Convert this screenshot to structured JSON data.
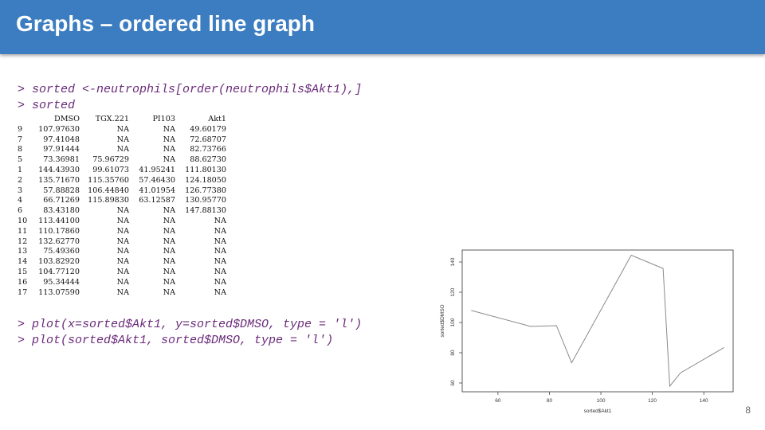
{
  "header": {
    "title": "Graphs – ordered line graph"
  },
  "commands": [
    "> sorted <-neutrophils[order(neutrophils$Akt1),]",
    "> sorted"
  ],
  "table": {
    "columns": [
      "DMSO",
      "TGX.221",
      "PI103",
      "Akt1"
    ],
    "rows": [
      [
        "9",
        "107.97630",
        "NA",
        "NA",
        "49.60179"
      ],
      [
        "7",
        "97.41048",
        "NA",
        "NA",
        "72.68707"
      ],
      [
        "8",
        "97.91444",
        "NA",
        "NA",
        "82.73766"
      ],
      [
        "5",
        "73.36981",
        "75.96729",
        "NA",
        "88.62730"
      ],
      [
        "1",
        "144.43930",
        "99.61073",
        "41.95241",
        "111.80130"
      ],
      [
        "2",
        "135.71670",
        "115.35760",
        "57.46430",
        "124.18050"
      ],
      [
        "3",
        "57.88828",
        "106.44840",
        "41.01954",
        "126.77380"
      ],
      [
        "4",
        "66.71269",
        "115.89830",
        "63.12587",
        "130.95770"
      ],
      [
        "6",
        "83.43180",
        "NA",
        "NA",
        "147.88130"
      ],
      [
        "10",
        "113.44100",
        "NA",
        "NA",
        "NA"
      ],
      [
        "11",
        "110.17860",
        "NA",
        "NA",
        "NA"
      ],
      [
        "12",
        "132.62770",
        "NA",
        "NA",
        "NA"
      ],
      [
        "13",
        "75.49360",
        "NA",
        "NA",
        "NA"
      ],
      [
        "14",
        "103.82920",
        "NA",
        "NA",
        "NA"
      ],
      [
        "15",
        "104.77120",
        "NA",
        "NA",
        "NA"
      ],
      [
        "16",
        "95.34444",
        "NA",
        "NA",
        "NA"
      ],
      [
        "17",
        "113.07590",
        "NA",
        "NA",
        "NA"
      ]
    ]
  },
  "plot_commands": [
    "> plot(x=sorted$Akt1, y=sorted$DMSO, type = 'l')",
    "> plot(sorted$Akt1, sorted$DMSO, type = 'l')"
  ],
  "chart_data": {
    "type": "line",
    "x": [
      49.60179,
      72.68707,
      82.73766,
      88.6273,
      111.8013,
      124.1805,
      126.7738,
      130.9577,
      147.8813
    ],
    "y": [
      107.9763,
      97.41048,
      97.91444,
      73.36981,
      144.4393,
      135.7167,
      57.88828,
      66.71269,
      83.4318
    ],
    "xlabel": "sorted$Akt1",
    "ylabel": "sorted$DMSO",
    "xticks": [
      60,
      80,
      100,
      120,
      140
    ],
    "yticks": [
      60,
      80,
      100,
      120,
      140
    ],
    "xlim": [
      46.1,
      151.4
    ],
    "ylim": [
      54.2,
      147.9
    ],
    "grid": false,
    "line_color": "#8a8a8a"
  },
  "page_number": "8"
}
